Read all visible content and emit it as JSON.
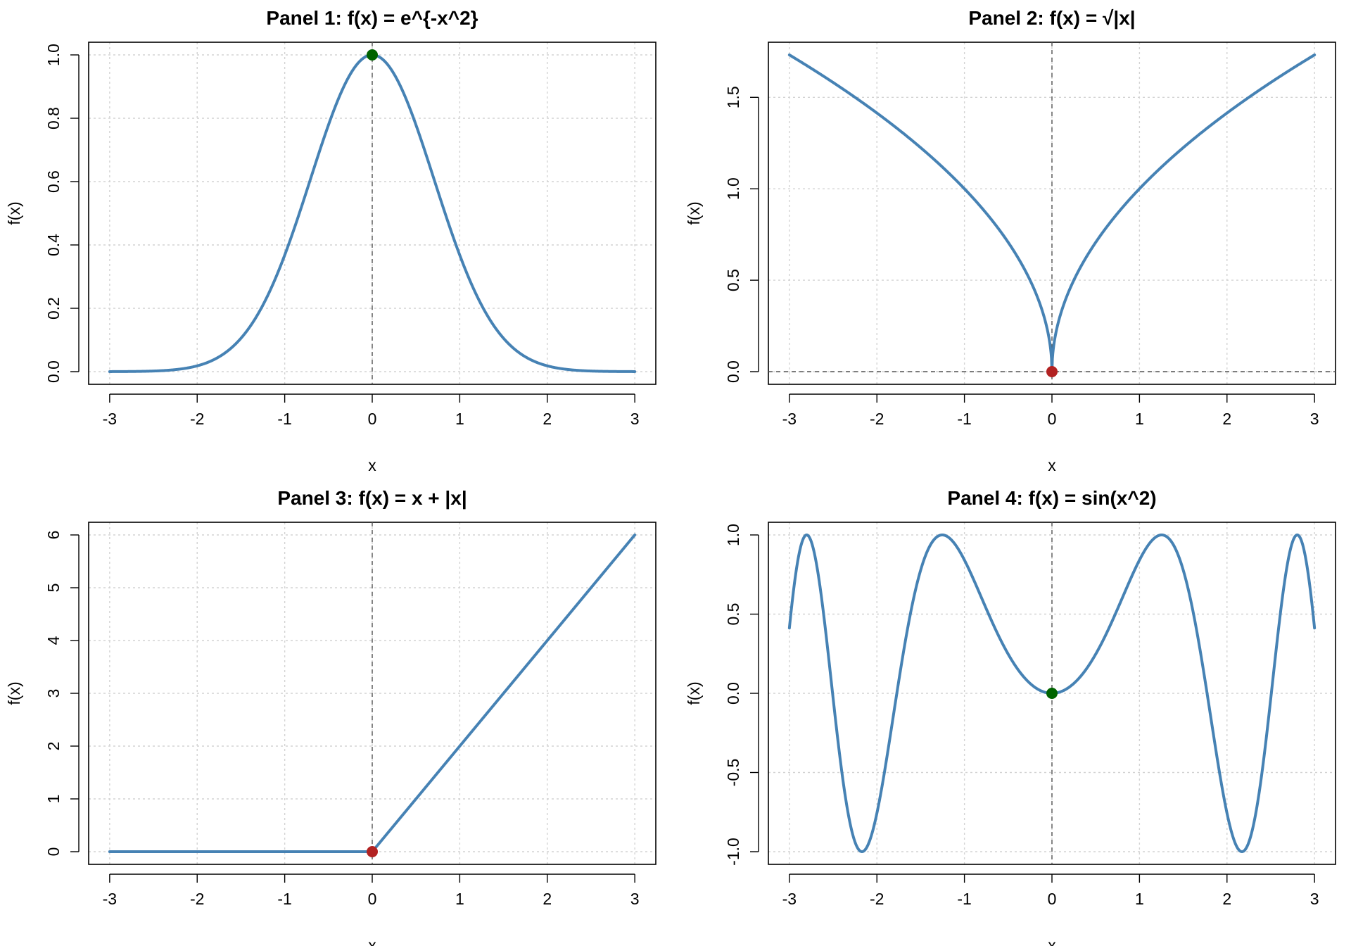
{
  "chart_data": [
    {
      "type": "line",
      "title": "Panel 1: f(x) = e^{-x^2}",
      "xlabel": "x",
      "ylabel": "f(x)",
      "function": "exp(-x^2)",
      "xlim": [
        -3,
        3
      ],
      "ylim": [
        0,
        1
      ],
      "xticks": [
        "-3",
        "-2",
        "-1",
        "0",
        "1",
        "2",
        "3"
      ],
      "yticks": [
        "0.0",
        "0.2",
        "0.4",
        "0.6",
        "0.8",
        "1.0"
      ],
      "x_range": [
        -3,
        3
      ],
      "x_start": -3,
      "x_end": 3,
      "vline_x": 0,
      "hline_y": null,
      "point": {
        "x": 0,
        "y": 1,
        "color": "#006400"
      },
      "line_color": "#4682b4",
      "grid": true
    },
    {
      "type": "line",
      "title": "Panel 2: f(x) = √|x|",
      "xlabel": "x",
      "ylabel": "f(x)",
      "function": "sqrt(abs(x))",
      "xlim": [
        -3,
        3
      ],
      "ylim": [
        0,
        1.732
      ],
      "xticks": [
        "-3",
        "-2",
        "-1",
        "0",
        "1",
        "2",
        "3"
      ],
      "yticks": [
        "0.0",
        "0.5",
        "1.0",
        "1.5"
      ],
      "x_range": [
        -3,
        3
      ],
      "x_start": -3,
      "x_end": 3,
      "vline_x": 0,
      "hline_y": 0,
      "point": {
        "x": 0,
        "y": 0,
        "color": "#b22222"
      },
      "line_color": "#4682b4",
      "grid": true
    },
    {
      "type": "line",
      "title": "Panel 3: f(x) = x + |x|",
      "xlabel": "x",
      "ylabel": "f(x)",
      "function": "x + abs(x)",
      "xlim": [
        -3,
        3
      ],
      "ylim": [
        0,
        6
      ],
      "xticks": [
        "-3",
        "-2",
        "-1",
        "0",
        "1",
        "2",
        "3"
      ],
      "yticks": [
        "0",
        "1",
        "2",
        "3",
        "4",
        "5",
        "6"
      ],
      "x_range": [
        -3,
        3
      ],
      "x_start": -3,
      "x_end": 3,
      "vline_x": 0,
      "hline_y": null,
      "point": {
        "x": 0,
        "y": 0,
        "color": "#b22222"
      },
      "line_color": "#4682b4",
      "grid": true
    },
    {
      "type": "line",
      "title": "Panel 4: f(x) = sin(x^2)",
      "xlabel": "x",
      "ylabel": "f(x)",
      "function": "sin(x^2)",
      "xlim": [
        -3,
        3
      ],
      "ylim": [
        -1,
        1
      ],
      "xticks": [
        "-3",
        "-2",
        "-1",
        "0",
        "1",
        "2",
        "3"
      ],
      "yticks": [
        "-1.0",
        "-0.5",
        "0.0",
        "0.5",
        "1.0"
      ],
      "x_range": [
        -3,
        3
      ],
      "x_start": -3,
      "x_end": 3,
      "vline_x": 0,
      "hline_y": null,
      "point": {
        "x": 0,
        "y": 0,
        "color": "#006400"
      },
      "line_color": "#4682b4",
      "grid": true
    }
  ]
}
